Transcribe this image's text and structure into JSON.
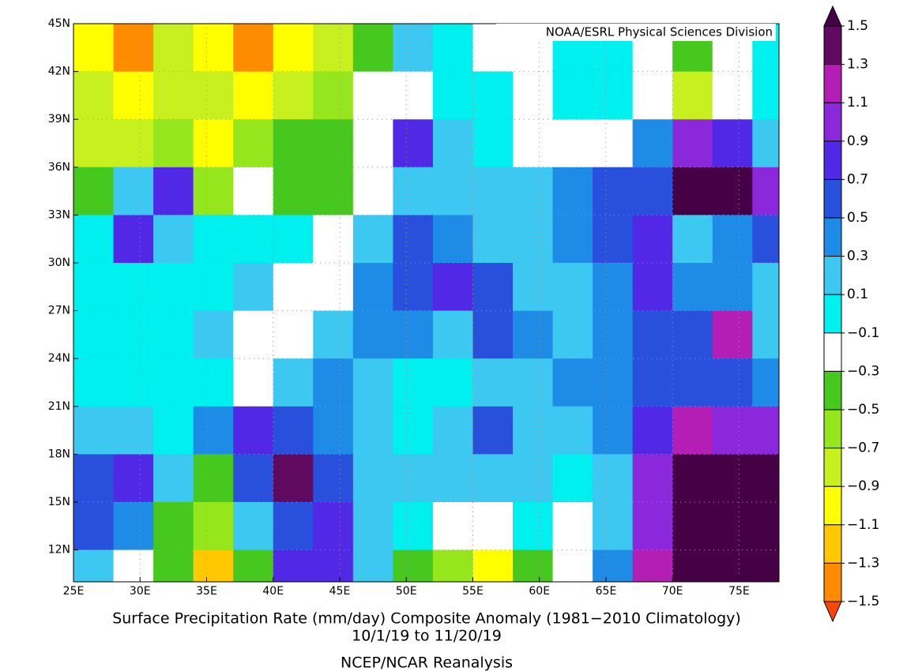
{
  "chart_data": {
    "type": "map",
    "credit": "NOAA/ESRL Physical Sciences Division",
    "title": "Surface Precipitation Rate (mm/day) Composite Anomaly (1981−2010 Climatology)",
    "subtitle": "10/1/19  to 11/20/19",
    "source": "NCEP/NCAR Reanalysis",
    "xlim": [
      25,
      78
    ],
    "ylim": [
      10,
      45
    ],
    "xticks": [
      {
        "value": 25,
        "label": "25E"
      },
      {
        "value": 30,
        "label": "30E"
      },
      {
        "value": 35,
        "label": "35E"
      },
      {
        "value": 40,
        "label": "40E"
      },
      {
        "value": 45,
        "label": "45E"
      },
      {
        "value": 50,
        "label": "50E"
      },
      {
        "value": 55,
        "label": "55E"
      },
      {
        "value": 60,
        "label": "60E"
      },
      {
        "value": 65,
        "label": "65E"
      },
      {
        "value": 70,
        "label": "70E"
      },
      {
        "value": 75,
        "label": "75E"
      }
    ],
    "yticks": [
      {
        "value": 12,
        "label": "12N"
      },
      {
        "value": 15,
        "label": "15N"
      },
      {
        "value": 18,
        "label": "18N"
      },
      {
        "value": 21,
        "label": "21N"
      },
      {
        "value": 24,
        "label": "24N"
      },
      {
        "value": 27,
        "label": "27N"
      },
      {
        "value": 30,
        "label": "30N"
      },
      {
        "value": 33,
        "label": "33N"
      },
      {
        "value": 36,
        "label": "36N"
      },
      {
        "value": 39,
        "label": "39N"
      },
      {
        "value": 42,
        "label": "42N"
      },
      {
        "value": 45,
        "label": "45N"
      }
    ],
    "grid": true,
    "colorbar": {
      "levels": [
        1.5,
        1.3,
        1.1,
        0.9,
        0.7,
        0.5,
        0.3,
        0.1,
        {
          "value": -0.1,
          "label": "−0.1"
        },
        {
          "value": -0.3,
          "label": "−0.3"
        },
        {
          "value": -0.5,
          "label": "−0.5"
        },
        {
          "value": -0.7,
          "label": "−0.7"
        },
        {
          "value": -0.9,
          "label": "−0.9"
        },
        {
          "value": -1.1,
          "label": "−1.1"
        },
        {
          "value": -1.3,
          "label": "−1.3"
        },
        {
          "value": -1.5,
          "label": "−1.5"
        }
      ],
      "colors": [
        "#460046",
        "#5f0a5f",
        "#b41eb4",
        "#8c28dc",
        "#5028e6",
        "#2850dc",
        "#1e8ce6",
        "#3cc8f0",
        "#00f0f0",
        "#ffffff",
        "#46c81e",
        "#96e61e",
        "#c8f01e",
        "#ffff00",
        "#ffc800",
        "#ff8c00",
        "#ff4600",
        "#e60000"
      ]
    },
    "grid_data": {
      "lon": [
        26.5,
        29.5,
        32.5,
        35.5,
        38.5,
        41.5,
        44.5,
        47.5,
        50.5,
        53.5,
        56.5,
        59.5,
        62.5,
        65.5,
        68.5,
        71.5,
        74.5,
        77.5
      ],
      "lat": [
        43.5,
        40.5,
        37.5,
        34.5,
        31.5,
        28.5,
        25.5,
        22.5,
        19.5,
        16.5,
        13.5,
        10.5
      ],
      "values": [
        [
          -0.9,
          -1.3,
          -0.8,
          -1.0,
          -1.3,
          -1.0,
          -0.7,
          -0.4,
          0.2,
          0,
          -0.2,
          -0.2,
          0,
          0,
          -0.2,
          -0.3,
          -0.2,
          0
        ],
        [
          -0.8,
          -1.0,
          -0.8,
          -0.7,
          -0.9,
          -0.8,
          -0.5,
          -0.2,
          -0.2,
          0,
          0,
          -0.2,
          0,
          0,
          -0.2,
          -0.7,
          -0.2,
          0
        ],
        [
          -0.7,
          -0.7,
          -0.6,
          -0.9,
          -0.6,
          -0.4,
          -0.3,
          -0.2,
          0.9,
          0.2,
          0,
          -0.2,
          -0.2,
          -0.2,
          0.4,
          1.0,
          0.8,
          0.3
        ],
        [
          -0.4,
          0.2,
          0.8,
          -0.6,
          -0.2,
          -0.3,
          -0.4,
          -0.2,
          0.2,
          0.2,
          0.2,
          0.2,
          0.5,
          0.7,
          0.6,
          1.6,
          1.6,
          1.0
        ],
        [
          0.1,
          0.9,
          0.3,
          0,
          0,
          0,
          -0.2,
          0.3,
          0.6,
          0.4,
          0.2,
          0.2,
          0.4,
          0.6,
          0.8,
          0.3,
          0.5,
          0.6
        ],
        [
          0,
          0,
          0,
          0,
          0.2,
          -0.2,
          -0.1,
          0.4,
          0.6,
          0.8,
          0.6,
          0.3,
          0.2,
          0.4,
          0.8,
          0.5,
          0.5,
          0.2
        ],
        [
          0,
          0,
          0,
          0.2,
          -0.2,
          -0.2,
          0.2,
          0.4,
          0.5,
          0.3,
          0.7,
          0.4,
          0.2,
          0.4,
          0.6,
          0.6,
          1.2,
          0.2
        ],
        [
          0,
          0,
          0,
          0,
          -0.2,
          0.2,
          0.5,
          0.3,
          0,
          0,
          0.2,
          0.3,
          0.4,
          0.5,
          0.6,
          0.6,
          0.6,
          0.5
        ],
        [
          0.2,
          0.3,
          0,
          0.4,
          0.9,
          0.7,
          0.4,
          0.2,
          0,
          0.3,
          0.7,
          0.2,
          0.3,
          0.5,
          0.8,
          1.2,
          1.1,
          1.0
        ],
        [
          0.7,
          0.8,
          0.3,
          -0.3,
          0.6,
          1.4,
          0.6,
          0.2,
          0.2,
          0.2,
          0.2,
          0.2,
          0,
          0.3,
          1.0,
          1.6,
          1.6,
          1.6
        ],
        [
          0.6,
          0.4,
          -0.3,
          -0.5,
          0.3,
          0.6,
          0.8,
          0.2,
          0,
          -0.2,
          -0.2,
          0,
          -0.2,
          0.2,
          1.0,
          1.6,
          1.6,
          1.6
        ],
        [
          0.2,
          -0.2,
          -0.4,
          -1.1,
          -0.4,
          0.9,
          0.8,
          0.3,
          -0.3,
          -0.6,
          -0.9,
          -0.4,
          -0.2,
          0.5,
          1.3,
          1.6,
          1.6,
          1.6
        ]
      ]
    }
  }
}
